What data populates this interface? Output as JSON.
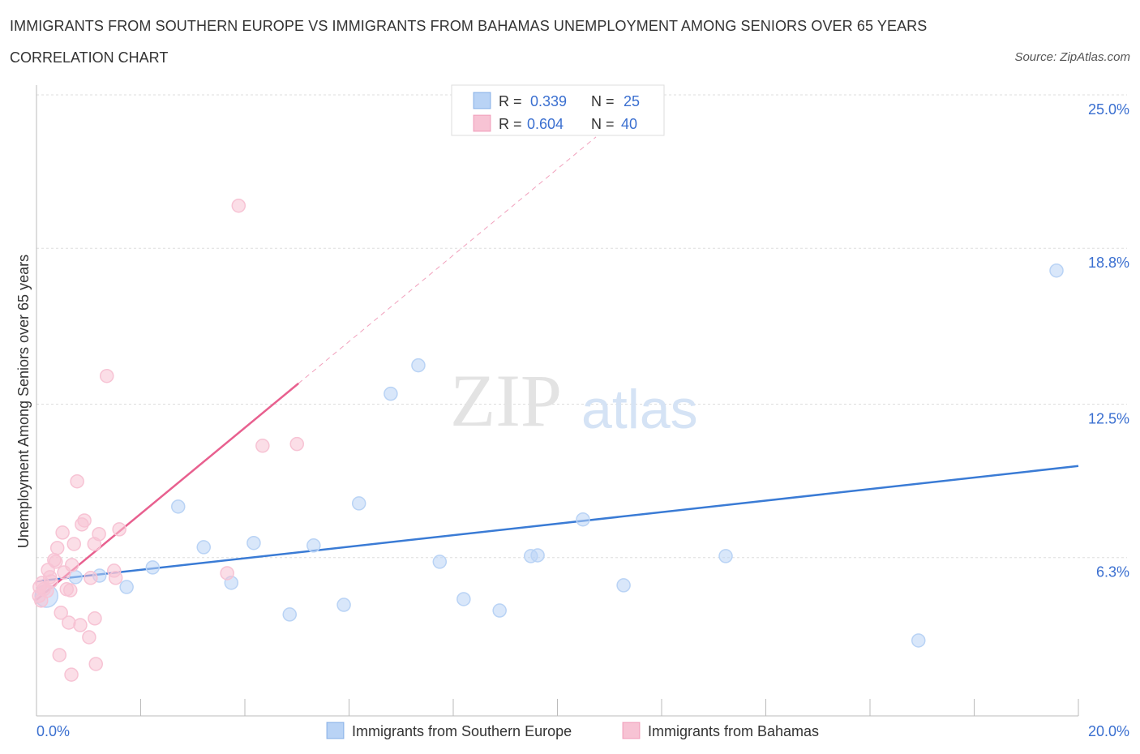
{
  "header": {
    "title": "IMMIGRANTS FROM SOUTHERN EUROPE VS IMMIGRANTS FROM BAHAMAS UNEMPLOYMENT AMONG SENIORS OVER 65 YEARS",
    "subtitle": "CORRELATION CHART",
    "source": "Source: ZipAtlas.com"
  },
  "watermark": "ZIPatlas",
  "chart_data": {
    "type": "scatter",
    "title": "IMMIGRANTS FROM SOUTHERN EUROPE VS IMMIGRANTS FROM BAHAMAS UNEMPLOYMENT AMONG SENIORS OVER 65 YEARS",
    "xlabel": "",
    "ylabel": "Unemployment Among Seniors over 65 years",
    "xlim": [
      0,
      20
    ],
    "ylim": [
      0,
      25
    ],
    "x_tick_labels": [
      "0.0%",
      "20.0%"
    ],
    "y_ticks": [
      6.3,
      12.5,
      18.8,
      25.0
    ],
    "y_tick_labels": [
      "6.3%",
      "12.5%",
      "18.8%",
      "25.0%"
    ],
    "grid": true,
    "legend_placement": "bottom",
    "colors": {
      "blue": "#3a7bd5",
      "blue_fill": "#b9d3f5",
      "pink": "#e8608f",
      "pink_fill": "#f7c3d4"
    },
    "series": [
      {
        "name": "Immigrants from Southern Europe",
        "color": "blue",
        "R": "0.339",
        "N": "25",
        "trend": {
          "x": [
            0,
            20
          ],
          "y": [
            5.34,
            10.0
          ]
        },
        "points": [
          [
            19.58,
            17.9
          ],
          [
            7.33,
            14.07
          ],
          [
            6.8,
            12.92
          ],
          [
            6.19,
            8.49
          ],
          [
            2.72,
            8.36
          ],
          [
            10.49,
            7.84
          ],
          [
            4.17,
            6.89
          ],
          [
            3.21,
            6.72
          ],
          [
            5.32,
            6.79
          ],
          [
            2.23,
            5.9
          ],
          [
            7.74,
            6.13
          ],
          [
            9.49,
            6.36
          ],
          [
            9.62,
            6.39
          ],
          [
            13.23,
            6.36
          ],
          [
            1.21,
            5.57
          ],
          [
            0.75,
            5.51
          ],
          [
            1.73,
            5.11
          ],
          [
            3.74,
            5.28
          ],
          [
            11.27,
            5.18
          ],
          [
            0.19,
            4.75
          ],
          [
            8.2,
            4.62
          ],
          [
            5.9,
            4.39
          ],
          [
            8.89,
            4.16
          ],
          [
            4.86,
            4.0
          ],
          [
            16.93,
            2.95
          ]
        ]
      },
      {
        "name": "Immigrants from Bahamas",
        "color": "pink",
        "R": "0.604",
        "N": "40",
        "trend": {
          "x": [
            0,
            5.03
          ],
          "y": [
            4.59,
            13.34
          ],
          "dashed_to": [
            10.74,
            23.3
          ]
        },
        "points": [
          [
            3.88,
            20.52
          ],
          [
            1.35,
            13.64
          ],
          [
            5.0,
            10.89
          ],
          [
            4.34,
            10.82
          ],
          [
            0.78,
            9.38
          ],
          [
            0.92,
            7.8
          ],
          [
            0.87,
            7.64
          ],
          [
            1.59,
            7.44
          ],
          [
            1.2,
            7.25
          ],
          [
            0.5,
            7.31
          ],
          [
            0.72,
            6.85
          ],
          [
            1.11,
            6.85
          ],
          [
            0.4,
            6.69
          ],
          [
            0.34,
            6.2
          ],
          [
            0.37,
            6.13
          ],
          [
            0.68,
            6.0
          ],
          [
            0.22,
            5.8
          ],
          [
            1.49,
            5.77
          ],
          [
            0.53,
            5.7
          ],
          [
            3.66,
            5.67
          ],
          [
            1.04,
            5.48
          ],
          [
            1.52,
            5.48
          ],
          [
            0.28,
            5.34
          ],
          [
            0.11,
            5.28
          ],
          [
            0.06,
            5.11
          ],
          [
            0.58,
            5.02
          ],
          [
            0.65,
            4.98
          ],
          [
            0.2,
            4.95
          ],
          [
            0.05,
            4.75
          ],
          [
            0.09,
            4.56
          ],
          [
            0.47,
            4.07
          ],
          [
            1.12,
            3.84
          ],
          [
            0.62,
            3.67
          ],
          [
            0.84,
            3.57
          ],
          [
            1.01,
            3.08
          ],
          [
            0.44,
            2.36
          ],
          [
            1.14,
            2.0
          ],
          [
            0.67,
            1.57
          ],
          [
            0.14,
            5.02
          ],
          [
            0.26,
            5.51
          ]
        ]
      }
    ]
  },
  "legend": {
    "r_label": "R =",
    "n_label": "N ="
  }
}
